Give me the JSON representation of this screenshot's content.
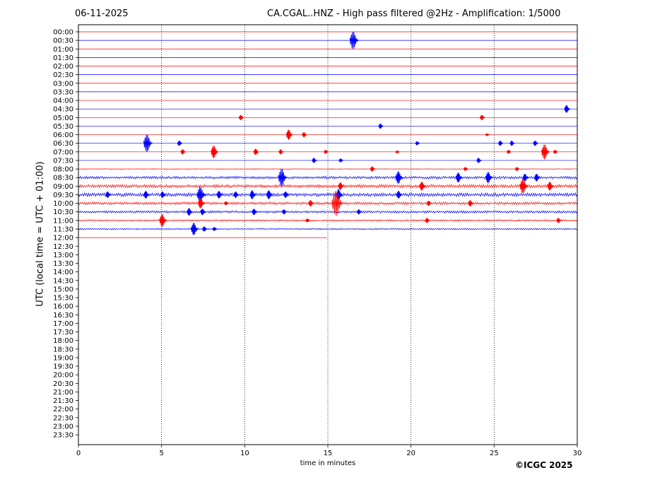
{
  "header": {
    "date": "06-11-2025",
    "title": "CA.CGAL..HNZ - High pass filtered @2Hz - Amplification: 1/5000"
  },
  "footer": {
    "copyright": "©ICGC 2025"
  },
  "colors": {
    "red_trace": "#ff0000",
    "blue_trace": "#0000ff",
    "axis": "#000000",
    "grid": "#000000"
  },
  "chart_data": {
    "type": "line",
    "title": "CA.CGAL..HNZ - High pass filtered @2Hz - Amplification: 1/5000",
    "xlabel": "time in minutes",
    "ylabel": "UTC (local time = UTC + 01:00)",
    "xlim": [
      0,
      30
    ],
    "x_ticks": [
      "0",
      "5",
      "10",
      "15",
      "20",
      "25",
      "30"
    ],
    "grid": "vertical dotted lines at 5, 10, 15, 20, 25",
    "row_labels": [
      "00:00",
      "00:30",
      "01:00",
      "01:30",
      "02:00",
      "02:30",
      "03:00",
      "03:30",
      "04:00",
      "04:30",
      "05:00",
      "05:30",
      "06:00",
      "06:30",
      "07:00",
      "07:30",
      "08:00",
      "08:30",
      "09:00",
      "09:30",
      "10:00",
      "10:30",
      "11:00",
      "11:30",
      "12:00",
      "12:30",
      "13:00",
      "13:30",
      "14:00",
      "14:30",
      "15:00",
      "15:30",
      "16:00",
      "16:30",
      "17:00",
      "17:30",
      "18:00",
      "18:30",
      "19:00",
      "19:30",
      "20:00",
      "20:30",
      "21:00",
      "21:30",
      "22:00",
      "22:30",
      "23:00",
      "23:30"
    ],
    "row_colors": [
      "red",
      "blue"
    ],
    "recorded_until": {
      "row": "12:00",
      "minute": 15
    },
    "noise_levels": [
      {
        "row": "08:00",
        "level": 0.15
      },
      {
        "row": "08:30",
        "level": 0.45
      },
      {
        "row": "09:00",
        "level": 0.55
      },
      {
        "row": "09:30",
        "level": 0.6
      },
      {
        "row": "10:00",
        "level": 0.45
      },
      {
        "row": "10:30",
        "level": 0.4
      },
      {
        "row": "11:00",
        "level": 0.3
      },
      {
        "row": "11:30",
        "level": 0.25
      },
      {
        "row": "12:00",
        "level": 0.05
      }
    ],
    "events": [
      {
        "row": "00:30",
        "minute": 16.6,
        "amplitude": 1.4
      },
      {
        "row": "04:30",
        "minute": 29.4,
        "amplitude": 0.6
      },
      {
        "row": "05:00",
        "minute": 9.8,
        "amplitude": 0.4
      },
      {
        "row": "05:00",
        "minute": 24.3,
        "amplitude": 0.4
      },
      {
        "row": "05:30",
        "minute": 18.2,
        "amplitude": 0.4
      },
      {
        "row": "06:00",
        "minute": 12.7,
        "amplitude": 0.8
      },
      {
        "row": "06:00",
        "minute": 13.6,
        "amplitude": 0.4
      },
      {
        "row": "06:00",
        "minute": 24.6,
        "amplitude": 0.2
      },
      {
        "row": "06:30",
        "minute": 4.2,
        "amplitude": 1.4
      },
      {
        "row": "06:30",
        "minute": 6.1,
        "amplitude": 0.4
      },
      {
        "row": "06:30",
        "minute": 20.4,
        "amplitude": 0.3
      },
      {
        "row": "06:30",
        "minute": 25.4,
        "amplitude": 0.4
      },
      {
        "row": "06:30",
        "minute": 26.1,
        "amplitude": 0.4
      },
      {
        "row": "06:30",
        "minute": 27.5,
        "amplitude": 0.4
      },
      {
        "row": "07:00",
        "minute": 6.3,
        "amplitude": 0.4
      },
      {
        "row": "07:00",
        "minute": 8.2,
        "amplitude": 1.0
      },
      {
        "row": "07:00",
        "minute": 10.7,
        "amplitude": 0.5
      },
      {
        "row": "07:00",
        "minute": 12.2,
        "amplitude": 0.4
      },
      {
        "row": "07:00",
        "minute": 14.9,
        "amplitude": 0.3
      },
      {
        "row": "07:00",
        "minute": 19.2,
        "amplitude": 0.2
      },
      {
        "row": "07:00",
        "minute": 25.9,
        "amplitude": 0.3
      },
      {
        "row": "07:00",
        "minute": 28.1,
        "amplitude": 1.2
      },
      {
        "row": "07:00",
        "minute": 28.7,
        "amplitude": 0.3
      },
      {
        "row": "07:30",
        "minute": 14.2,
        "amplitude": 0.4
      },
      {
        "row": "07:30",
        "minute": 15.8,
        "amplitude": 0.3
      },
      {
        "row": "07:30",
        "minute": 24.1,
        "amplitude": 0.4
      },
      {
        "row": "08:00",
        "minute": 17.7,
        "amplitude": 0.4
      },
      {
        "row": "08:00",
        "minute": 23.3,
        "amplitude": 0.3
      },
      {
        "row": "08:00",
        "minute": 26.4,
        "amplitude": 0.3
      },
      {
        "row": "08:30",
        "minute": 12.3,
        "amplitude": 1.4
      },
      {
        "row": "08:30",
        "minute": 19.3,
        "amplitude": 1.0
      },
      {
        "row": "08:30",
        "minute": 22.9,
        "amplitude": 0.8
      },
      {
        "row": "08:30",
        "minute": 24.7,
        "amplitude": 0.9
      },
      {
        "row": "08:30",
        "minute": 26.9,
        "amplitude": 0.6
      },
      {
        "row": "08:30",
        "minute": 27.6,
        "amplitude": 0.6
      },
      {
        "row": "09:00",
        "minute": 15.8,
        "amplitude": 0.6
      },
      {
        "row": "09:00",
        "minute": 20.7,
        "amplitude": 0.7
      },
      {
        "row": "09:00",
        "minute": 26.8,
        "amplitude": 1.2
      },
      {
        "row": "09:00",
        "minute": 28.4,
        "amplitude": 0.7
      },
      {
        "row": "09:30",
        "minute": 1.8,
        "amplitude": 0.5
      },
      {
        "row": "09:30",
        "minute": 4.1,
        "amplitude": 0.6
      },
      {
        "row": "09:30",
        "minute": 5.1,
        "amplitude": 0.5
      },
      {
        "row": "09:30",
        "minute": 7.4,
        "amplitude": 1.3
      },
      {
        "row": "09:30",
        "minute": 8.5,
        "amplitude": 0.6
      },
      {
        "row": "09:30",
        "minute": 9.5,
        "amplitude": 0.5
      },
      {
        "row": "09:30",
        "minute": 10.5,
        "amplitude": 0.7
      },
      {
        "row": "09:30",
        "minute": 11.5,
        "amplitude": 0.7
      },
      {
        "row": "09:30",
        "minute": 12.5,
        "amplitude": 0.5
      },
      {
        "row": "09:30",
        "minute": 15.7,
        "amplitude": 0.9
      },
      {
        "row": "09:30",
        "minute": 19.3,
        "amplitude": 0.6
      },
      {
        "row": "10:00",
        "minute": 7.4,
        "amplitude": 0.8
      },
      {
        "row": "10:00",
        "minute": 8.9,
        "amplitude": 0.3
      },
      {
        "row": "10:00",
        "minute": 14.0,
        "amplitude": 0.5
      },
      {
        "row": "10:00",
        "minute": 15.6,
        "amplitude": 2.0
      },
      {
        "row": "10:00",
        "minute": 21.1,
        "amplitude": 0.4
      },
      {
        "row": "10:00",
        "minute": 23.6,
        "amplitude": 0.5
      },
      {
        "row": "10:30",
        "minute": 6.7,
        "amplitude": 0.6
      },
      {
        "row": "10:30",
        "minute": 7.5,
        "amplitude": 0.5
      },
      {
        "row": "10:30",
        "minute": 10.6,
        "amplitude": 0.5
      },
      {
        "row": "10:30",
        "minute": 12.4,
        "amplitude": 0.4
      },
      {
        "row": "10:30",
        "minute": 16.9,
        "amplitude": 0.4
      },
      {
        "row": "11:00",
        "minute": 5.1,
        "amplitude": 1.0
      },
      {
        "row": "11:00",
        "minute": 13.8,
        "amplitude": 0.3
      },
      {
        "row": "11:00",
        "minute": 21.0,
        "amplitude": 0.4
      },
      {
        "row": "11:00",
        "minute": 28.9,
        "amplitude": 0.4
      },
      {
        "row": "11:30",
        "minute": 7.0,
        "amplitude": 1.0
      },
      {
        "row": "11:30",
        "minute": 7.6,
        "amplitude": 0.4
      },
      {
        "row": "11:30",
        "minute": 8.2,
        "amplitude": 0.3
      }
    ]
  }
}
